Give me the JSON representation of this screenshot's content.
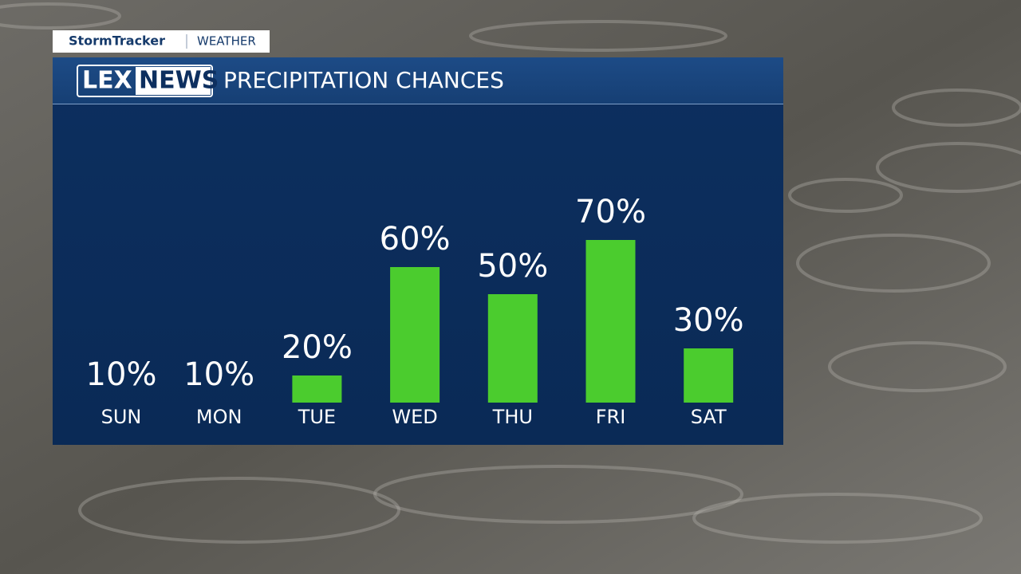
{
  "header": {
    "brand": "StormTracker",
    "section": "WEATHER",
    "logo": [
      "LEX",
      "NEWS"
    ]
  },
  "chart_data": {
    "type": "bar",
    "title": "PRECIPITATION CHANCES",
    "categories": [
      "SUN",
      "MON",
      "TUE",
      "WED",
      "THU",
      "FRI",
      "SAT"
    ],
    "values": [
      10,
      10,
      20,
      60,
      50,
      70,
      30
    ],
    "value_labels": [
      "10%",
      "10%",
      "20%",
      "60%",
      "50%",
      "70%",
      "30%"
    ],
    "color": "#4bcc2e",
    "ylim": [
      10,
      100
    ]
  }
}
